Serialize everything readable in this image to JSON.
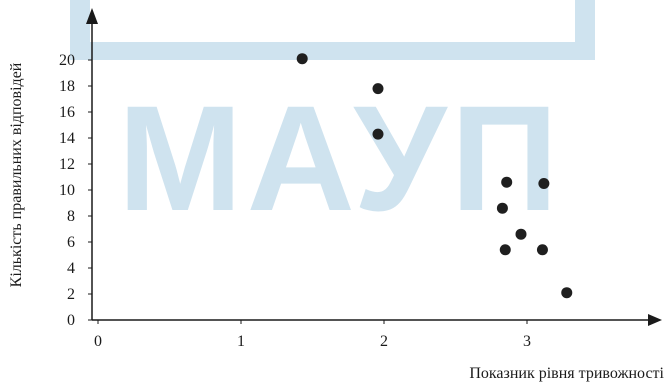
{
  "chart_data": {
    "type": "scatter",
    "xlabel": "Показник рівня тривожності",
    "ylabel": "Кількість правильних відповідей",
    "xlim": [
      0,
      3.7
    ],
    "ylim": [
      0,
      22
    ],
    "x_ticks": [
      0,
      1,
      2,
      3
    ],
    "y_ticks": [
      0,
      2,
      4,
      6,
      8,
      10,
      12,
      14,
      16,
      18,
      20
    ],
    "grid": false,
    "points": [
      {
        "x": 1.47,
        "y": 20.1
      },
      {
        "x": 2.0,
        "y": 17.8
      },
      {
        "x": 2.0,
        "y": 14.3
      },
      {
        "x": 2.9,
        "y": 10.6
      },
      {
        "x": 3.16,
        "y": 10.5
      },
      {
        "x": 2.87,
        "y": 8.6
      },
      {
        "x": 3.0,
        "y": 6.6
      },
      {
        "x": 2.89,
        "y": 5.4
      },
      {
        "x": 3.15,
        "y": 5.4
      },
      {
        "x": 3.32,
        "y": 2.1
      }
    ],
    "colors": {
      "marker": "#1f1f1f",
      "axis": "#1a1a1a",
      "watermark": "#cfe3ef"
    }
  },
  "watermark": {
    "text": "МАУП"
  }
}
